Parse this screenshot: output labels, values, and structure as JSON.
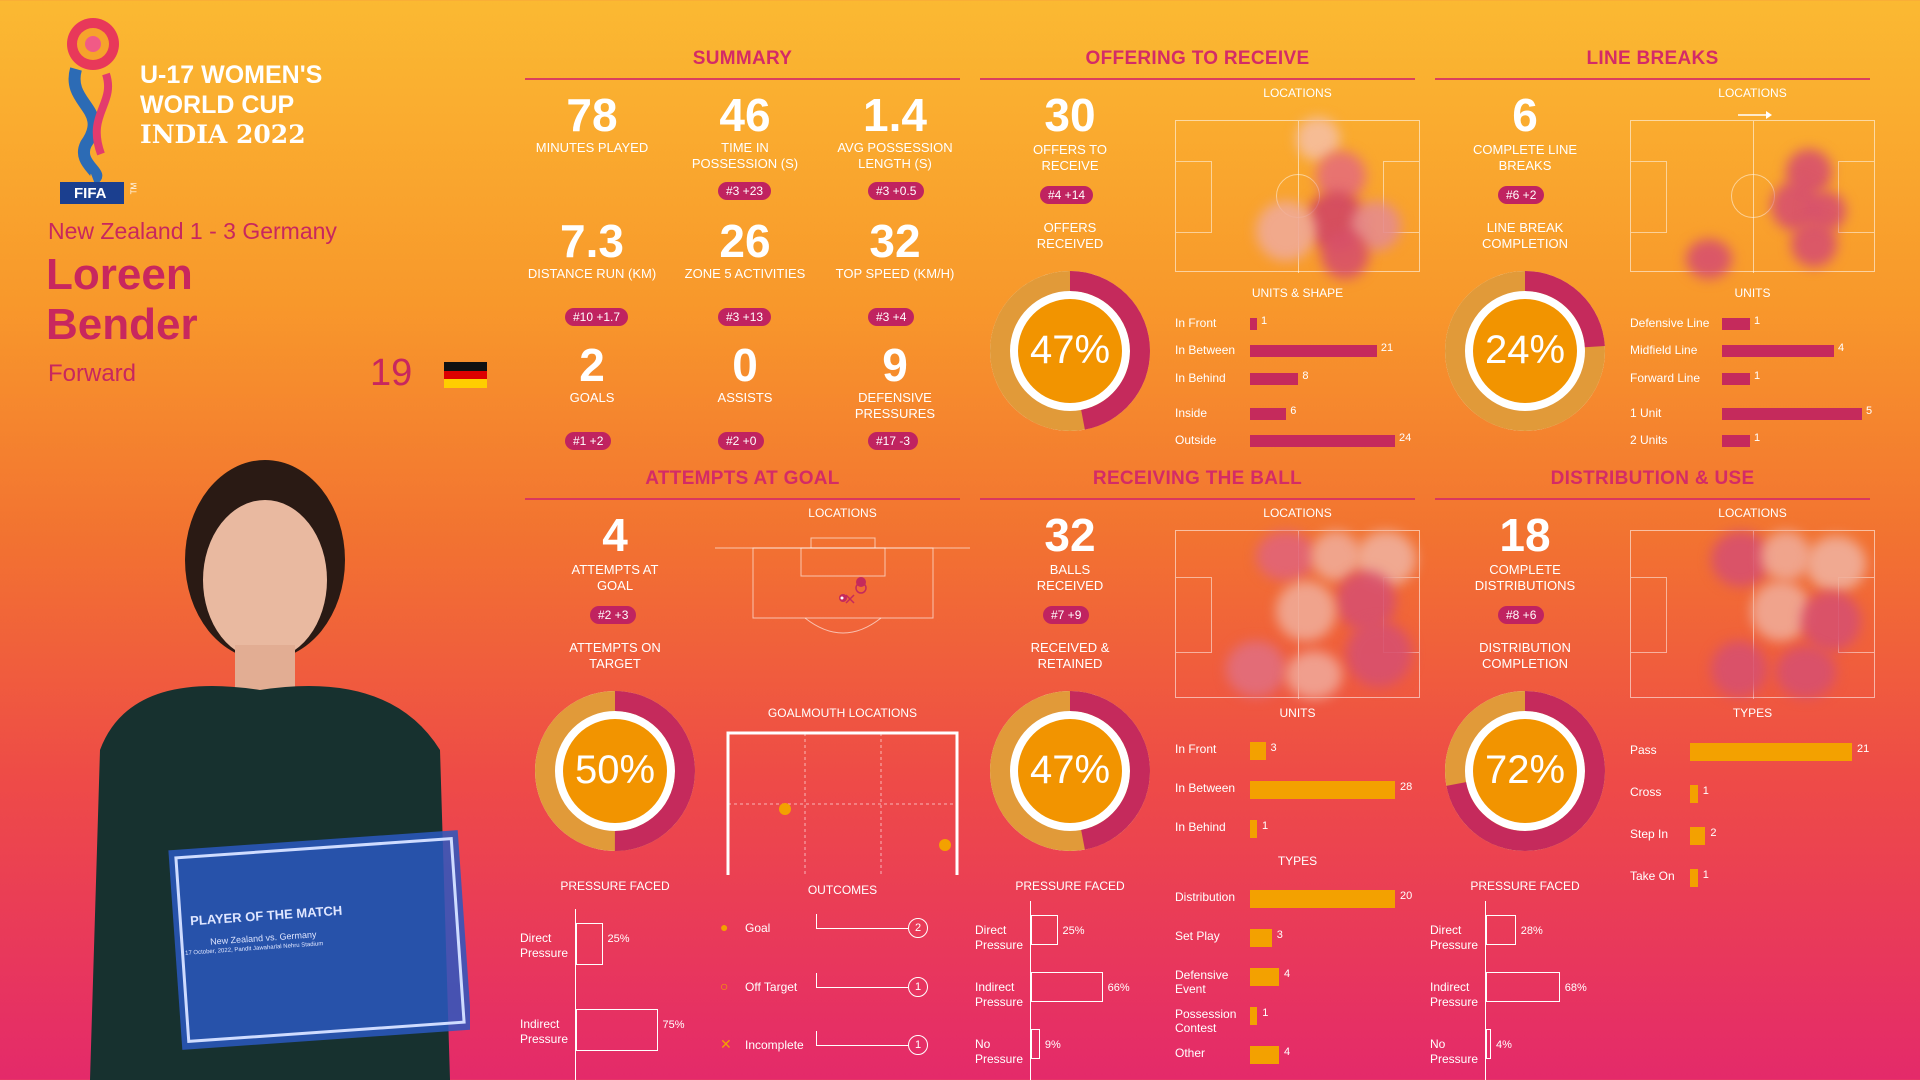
{
  "header": {
    "tournament_line1": "U-17 WOMEN'S",
    "tournament_line2": "WORLD CUP",
    "tournament_line3": "INDIA 2022",
    "fifa": "FIFA",
    "tm": "TM",
    "match": "New Zealand 1 - 3 Germany",
    "first_name": "Loreen",
    "last_name": "Bender",
    "position": "Forward",
    "number": "19"
  },
  "plaque": {
    "title": "PLAYER OF THE MATCH",
    "match": "New Zealand vs. Germany",
    "detail": "17 October, 2022, Pandit Jawaharlal Nehru Stadium"
  },
  "summary": {
    "title": "SUMMARY",
    "stats": [
      {
        "value": "78",
        "label": "MINUTES PLAYED",
        "rank": ""
      },
      {
        "value": "46",
        "label": "TIME IN POSSESSION (s)",
        "rank": "#3 +23"
      },
      {
        "value": "1.4",
        "label": "AVG POSSESSION LENGTH (s)",
        "rank": "#3 +0.5"
      },
      {
        "value": "7.3",
        "label": "DISTANCE RUN (KM)",
        "rank": "#10 +1.7"
      },
      {
        "value": "26",
        "label": "ZONE 5 ACTIVITIES",
        "rank": "#3 +13"
      },
      {
        "value": "32",
        "label": "TOP SPEED (KM/H)",
        "rank": "#3 +4"
      },
      {
        "value": "2",
        "label": "GOALS",
        "rank": "#1 +2"
      },
      {
        "value": "0",
        "label": "ASSISTS",
        "rank": "#2 +0"
      },
      {
        "value": "9",
        "label": "DEFENSIVE PRESSURES",
        "rank": "#17 -3"
      }
    ]
  },
  "offering": {
    "title": "OFFERING TO RECEIVE",
    "value": "30",
    "label": "OFFERS TO RECEIVE",
    "rank": "#4 +14",
    "sub_label": "OFFERS RECEIVED",
    "percent": "47%",
    "percent_value": 47,
    "locations": "LOCATIONS",
    "units_title": "UNITS & SHAPE",
    "bars": [
      {
        "label": "In Front",
        "value": 1
      },
      {
        "label": "In Between",
        "value": 21
      },
      {
        "label": "In Behind",
        "value": 8
      },
      {
        "label": "Inside",
        "value": 6
      },
      {
        "label": "Outside",
        "value": 24
      }
    ]
  },
  "linebreaks": {
    "title": "LINE BREAKS",
    "value": "6",
    "label": "COMPLETE LINE BREAKS",
    "rank": "#6 +2",
    "sub_label": "LINE BREAK COMPLETION",
    "percent": "24%",
    "percent_value": 24,
    "locations": "LOCATIONS",
    "units_title": "UNITS",
    "bars": [
      {
        "label": "Defensive Line",
        "value": 1
      },
      {
        "label": "Midfield Line",
        "value": 4
      },
      {
        "label": "Forward Line",
        "value": 1
      },
      {
        "label": "1 Unit",
        "value": 5
      },
      {
        "label": "2 Units",
        "value": 1
      }
    ]
  },
  "attempts": {
    "title": "ATTEMPTS AT GOAL",
    "value": "4",
    "label": "ATTEMPTS AT GOAL",
    "rank": "#2 +3",
    "sub_label": "ATTEMPTS ON TARGET",
    "percent": "50%",
    "percent_value": 50,
    "locations": "LOCATIONS",
    "goalmouth": "GOALMOUTH LOCATIONS",
    "pressure_title": "PRESSURE FACED",
    "pressure": [
      {
        "label": "Direct Pressure",
        "value": "25%",
        "frac": 0.25
      },
      {
        "label": "Indirect Pressure",
        "value": "75%",
        "frac": 0.75
      }
    ],
    "outcomes_title": "OUTCOMES",
    "outcomes": [
      {
        "label": "Goal",
        "count": "2"
      },
      {
        "label": "Off Target",
        "count": "1"
      },
      {
        "label": "Incomplete",
        "count": "1"
      }
    ]
  },
  "receiving": {
    "title": "RECEIVING THE BALL",
    "value": "32",
    "label": "BALLS RECEIVED",
    "rank": "#7 +9",
    "sub_label": "RECEIVED & RETAINED",
    "percent": "47%",
    "percent_value": 47,
    "locations": "LOCATIONS",
    "units_title": "UNITS",
    "units": [
      {
        "label": "In Front",
        "value": 3
      },
      {
        "label": "In Between",
        "value": 28
      },
      {
        "label": "In Behind",
        "value": 1
      }
    ],
    "types_title": "TYPES",
    "types": [
      {
        "label": "Distribution",
        "value": 20
      },
      {
        "label": "Set Play",
        "value": 3
      },
      {
        "label": "Defensive Event",
        "value": 4
      },
      {
        "label": "Possession Contest",
        "value": 1
      },
      {
        "label": "Other",
        "value": 4
      }
    ],
    "pressure_title": "PRESSURE FACED",
    "pressure": [
      {
        "label": "Direct Pressure",
        "value": "25%",
        "frac": 0.25
      },
      {
        "label": "Indirect Pressure",
        "value": "66%",
        "frac": 0.66
      },
      {
        "label": "No Pressure",
        "value": "9%",
        "frac": 0.09
      }
    ]
  },
  "distribution": {
    "title": "DISTRIBUTION & USE",
    "value": "18",
    "label": "COMPLETE DISTRIBUTIONS",
    "rank": "#8 +6",
    "sub_label": "DISTRIBUTION COMPLETION",
    "percent": "72%",
    "percent_value": 72,
    "locations": "LOCATIONS",
    "types_title": "TYPES",
    "types": [
      {
        "label": "Pass",
        "value": 21
      },
      {
        "label": "Cross",
        "value": 1
      },
      {
        "label": "Step In",
        "value": 2
      },
      {
        "label": "Take On",
        "value": 1
      }
    ],
    "pressure_title": "PRESSURE FACED",
    "pressure": [
      {
        "label": "Direct Pressure",
        "value": "28%",
        "frac": 0.28
      },
      {
        "label": "Indirect Pressure",
        "value": "68%",
        "frac": 0.68
      },
      {
        "label": "No Pressure",
        "value": "4%",
        "frac": 0.04
      }
    ]
  },
  "colors": {
    "magenta": "#c52a5c",
    "yellow": "#f3a100",
    "title": "#d42b66"
  }
}
